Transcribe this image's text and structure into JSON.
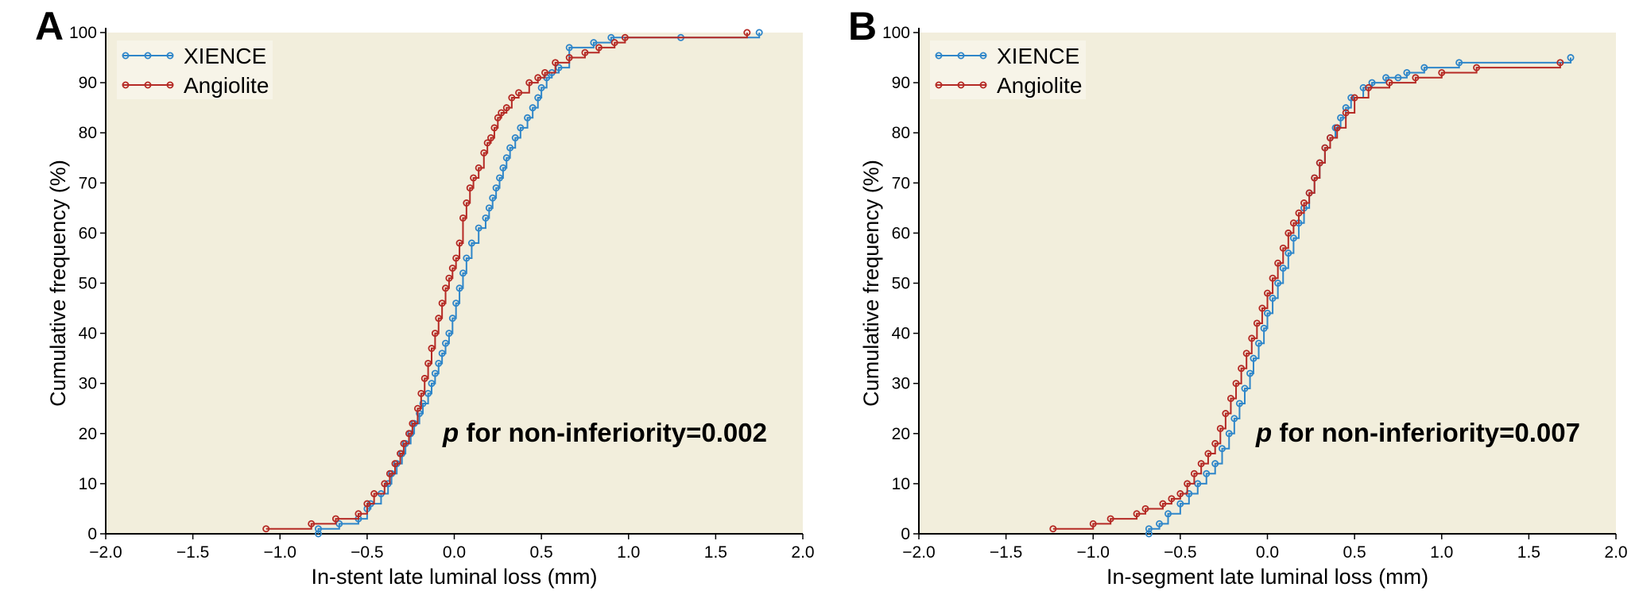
{
  "colors": {
    "plot_background": "#f2eedc",
    "XIENCE": "#2f86c9",
    "Angiolite": "#b52a25",
    "axis": "#000000"
  },
  "chart_data": [
    {
      "type": "line",
      "panel_label": "A",
      "xlabel": "In-stent late luminal loss (mm)",
      "ylabel": "Cumulative frequency (%)",
      "xlim": [
        -2.0,
        2.0
      ],
      "ylim": [
        0,
        100
      ],
      "x_ticks": [
        "−2.0",
        "−1.5",
        "−1.0",
        "−0.5",
        "0.0",
        "0.5",
        "1.0",
        "1.5",
        "2.0"
      ],
      "y_ticks": [
        "0",
        "10",
        "20",
        "30",
        "40",
        "50",
        "60",
        "70",
        "80",
        "90",
        "100"
      ],
      "grid": false,
      "legend": "top-left",
      "annotation": {
        "p": "p",
        "text": " for non-inferiority=0.002"
      },
      "series": [
        {
          "name": "XIENCE",
          "x": [
            -0.78,
            -0.78,
            -0.66,
            -0.55,
            -0.5,
            -0.48,
            -0.42,
            -0.38,
            -0.36,
            -0.33,
            -0.3,
            -0.28,
            -0.25,
            -0.23,
            -0.2,
            -0.18,
            -0.15,
            -0.13,
            -0.11,
            -0.09,
            -0.07,
            -0.05,
            -0.03,
            -0.01,
            0.01,
            0.03,
            0.05,
            0.07,
            0.1,
            0.14,
            0.18,
            0.2,
            0.22,
            0.24,
            0.26,
            0.28,
            0.3,
            0.32,
            0.35,
            0.38,
            0.42,
            0.45,
            0.48,
            0.5,
            0.53,
            0.56,
            0.6,
            0.66,
            0.8,
            0.9,
            1.3,
            1.75
          ],
          "y": [
            0,
            1,
            2,
            3,
            5,
            6,
            8,
            10,
            12,
            14,
            16,
            18,
            20,
            22,
            24,
            26,
            28,
            30,
            32,
            34,
            36,
            38,
            40,
            43,
            46,
            49,
            52,
            55,
            58,
            61,
            63,
            65,
            67,
            69,
            71,
            73,
            75,
            77,
            79,
            81,
            83,
            85,
            87,
            89,
            91,
            92,
            93,
            97,
            98,
            99,
            99,
            100
          ]
        },
        {
          "name": "Angiolite",
          "x": [
            -1.08,
            -0.82,
            -0.68,
            -0.55,
            -0.5,
            -0.46,
            -0.4,
            -0.37,
            -0.34,
            -0.31,
            -0.29,
            -0.26,
            -0.24,
            -0.21,
            -0.19,
            -0.17,
            -0.15,
            -0.13,
            -0.11,
            -0.09,
            -0.07,
            -0.05,
            -0.03,
            -0.01,
            0.01,
            0.03,
            0.05,
            0.07,
            0.09,
            0.11,
            0.14,
            0.17,
            0.19,
            0.21,
            0.23,
            0.25,
            0.27,
            0.3,
            0.33,
            0.37,
            0.43,
            0.48,
            0.52,
            0.58,
            0.66,
            0.75,
            0.83,
            0.92,
            0.98,
            1.68
          ],
          "y": [
            1,
            2,
            3,
            4,
            6,
            8,
            10,
            12,
            14,
            16,
            18,
            20,
            22,
            25,
            28,
            31,
            34,
            37,
            40,
            43,
            46,
            49,
            51,
            53,
            55,
            58,
            63,
            66,
            69,
            71,
            73,
            76,
            78,
            79,
            81,
            83,
            84,
            85,
            87,
            88,
            90,
            91,
            92,
            94,
            95,
            96,
            97,
            98,
            99,
            100
          ]
        }
      ]
    },
    {
      "type": "line",
      "panel_label": "B",
      "xlabel": "In-segment late luminal loss (mm)",
      "ylabel": "Cumulative frequency (%)",
      "xlim": [
        -2.0,
        2.0
      ],
      "ylim": [
        0,
        100
      ],
      "x_ticks": [
        "−2.0",
        "−1.5",
        "−1.0",
        "−0.5",
        "0.0",
        "0.5",
        "1.0",
        "1.5",
        "2.0"
      ],
      "y_ticks": [
        "0",
        "10",
        "20",
        "30",
        "40",
        "50",
        "60",
        "70",
        "80",
        "90",
        "100"
      ],
      "grid": false,
      "legend": "top-left",
      "annotation": {
        "p": "p",
        "text": " for non-inferiority=0.007"
      },
      "series": [
        {
          "name": "XIENCE",
          "x": [
            -0.68,
            -0.68,
            -0.62,
            -0.57,
            -0.5,
            -0.45,
            -0.4,
            -0.35,
            -0.3,
            -0.26,
            -0.22,
            -0.19,
            -0.16,
            -0.13,
            -0.1,
            -0.08,
            -0.05,
            -0.02,
            0.0,
            0.03,
            0.06,
            0.09,
            0.12,
            0.15,
            0.18,
            0.21,
            0.24,
            0.27,
            0.3,
            0.33,
            0.36,
            0.39,
            0.42,
            0.45,
            0.48,
            0.55,
            0.6,
            0.68,
            0.75,
            0.8,
            0.9,
            1.1,
            1.74
          ],
          "y": [
            0,
            1,
            2,
            4,
            6,
            8,
            10,
            12,
            14,
            17,
            20,
            23,
            26,
            29,
            32,
            35,
            38,
            41,
            44,
            47,
            50,
            53,
            56,
            59,
            62,
            65,
            68,
            71,
            74,
            77,
            79,
            81,
            83,
            85,
            87,
            89,
            90,
            91,
            91,
            92,
            93,
            94,
            95
          ]
        },
        {
          "name": "Angiolite",
          "x": [
            -1.23,
            -1.0,
            -0.9,
            -0.75,
            -0.7,
            -0.6,
            -0.55,
            -0.5,
            -0.46,
            -0.42,
            -0.38,
            -0.34,
            -0.3,
            -0.27,
            -0.24,
            -0.21,
            -0.18,
            -0.15,
            -0.12,
            -0.09,
            -0.06,
            -0.03,
            0.0,
            0.03,
            0.06,
            0.09,
            0.12,
            0.15,
            0.18,
            0.21,
            0.24,
            0.27,
            0.3,
            0.33,
            0.36,
            0.4,
            0.45,
            0.5,
            0.58,
            0.7,
            0.85,
            1.0,
            1.2,
            1.68
          ],
          "y": [
            1,
            2,
            3,
            4,
            5,
            6,
            7,
            8,
            10,
            12,
            14,
            16,
            18,
            21,
            24,
            27,
            30,
            33,
            36,
            39,
            42,
            45,
            48,
            51,
            54,
            57,
            60,
            62,
            64,
            66,
            68,
            71,
            74,
            77,
            79,
            81,
            84,
            87,
            89,
            90,
            91,
            92,
            93,
            94
          ]
        }
      ]
    }
  ]
}
